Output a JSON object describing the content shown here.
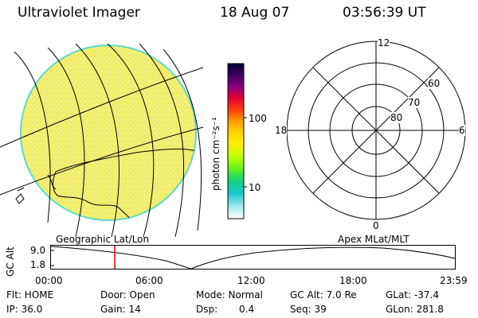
{
  "header": {
    "title": "Ultraviolet Imager",
    "date": "18 Aug 07",
    "time": "03:56:39 UT"
  },
  "geo_panel": {
    "label": "Geographic Lat/Lon"
  },
  "apex_panel": {
    "label": "Apex MLat/MLT",
    "mlt_labels": {
      "top": "12",
      "left": "18",
      "right": "6",
      "bottom": "0"
    },
    "lat_labels": [
      "60",
      "70",
      "80"
    ]
  },
  "colorbar": {
    "unit_label": "photon cm⁻²s⁻¹",
    "ticks": [
      "100",
      "10"
    ],
    "colors": [
      "#000033",
      "#3a0060",
      "#7a0090",
      "#c00040",
      "#ff1010",
      "#ff5a00",
      "#ff9a00",
      "#ffc800",
      "#fff000",
      "#d8ff00",
      "#80ff00",
      "#20e060",
      "#00c8c0",
      "#60e0e0",
      "#c8f0f0",
      "#ffffff"
    ]
  },
  "altitude_plot": {
    "ylabel": "GC Alt",
    "yticks": [
      "9.0",
      "1.8"
    ],
    "xticks": [
      "00:00",
      "06:00",
      "12:00",
      "18:00",
      "23:59"
    ]
  },
  "info": {
    "flt": "Flt: HOME",
    "ip": "IP: 36.0",
    "door": "Door: Open",
    "gain": "Gain: 14",
    "mode": "Mode: Normal",
    "dsp_label": "Dsp:",
    "dsp_value": "0.4",
    "gc_alt": "GC Alt: 7.0 Re",
    "seq": "Seq: 39",
    "glat": "GLat: -37.4",
    "glon": "GLon: 281.8"
  }
}
